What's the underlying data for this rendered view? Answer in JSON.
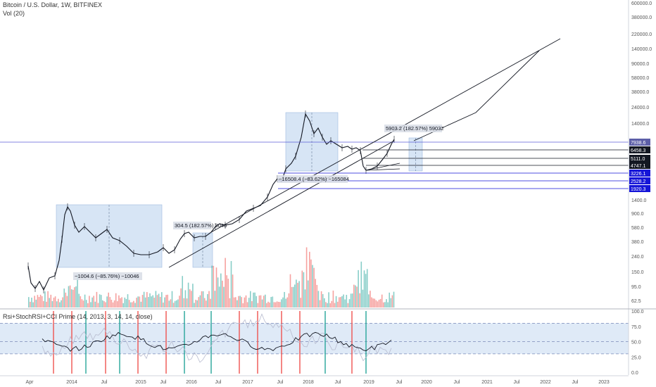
{
  "header": {
    "symbol_line": "Bitcoin / U.S. Dollar, 1W, BITFINEX",
    "volume_label": "Vol (20)",
    "indicator_label": "Rsi+StochRSI+CCI Prime (14, 2013, 3, 14, 14, close)"
  },
  "colors": {
    "up": "#26a69a",
    "down": "#ef5350",
    "box_fill": "#c9dcf2",
    "line": "#131722",
    "current_price_line": "#5b5bd6"
  },
  "chart_data": [
    {
      "type": "line",
      "title": "Bitcoin / U.S. Dollar, 1W, BITFINEX",
      "y_scale": "log",
      "y_ticks": [
        "600000.0",
        "380000.0",
        "220000.0",
        "140000.0",
        "90000.0",
        "58000.0",
        "38000.0",
        "24000.0",
        "14000.0",
        "6458.3",
        "5111.0",
        "4747.1",
        "2528.2",
        "1920.3",
        "1400.0",
        "900.0",
        "580.0",
        "380.0",
        "240.0",
        "150.0",
        "95.0",
        "62.5"
      ],
      "x_ticks": [
        "Apr",
        "2014",
        "Jul",
        "2015",
        "Jul",
        "2016",
        "Jul",
        "2017",
        "Jul",
        "2018",
        "Jul",
        "2019",
        "Jul",
        "2020",
        "Jul",
        "2021",
        "Jul",
        "2022",
        "Jul",
        "2023"
      ],
      "series": [
        {
          "x": [
            "2013-04",
            "2013-08",
            "2013-11",
            "2013-12",
            "2014-03",
            "2014-07",
            "2015-01",
            "2015-08",
            "2016-06",
            "2016-09",
            "2017-01",
            "2017-06",
            "2017-09",
            "2017-12",
            "2018-02",
            "2018-06",
            "2018-09",
            "2018-12",
            "2019-04",
            "2019-06"
          ],
          "y": [
            100,
            110,
            800,
            1000,
            500,
            600,
            180,
            230,
            650,
            600,
            1000,
            2500,
            4000,
            19000,
            7000,
            6500,
            6400,
            3300,
            5000,
            13000
          ]
        }
      ],
      "price_labels": [
        {
          "value": "7938.6",
          "style": "current"
        },
        {
          "value": "6458.3",
          "style": "dark"
        },
        {
          "value": "5111.0",
          "style": "dark"
        },
        {
          "value": "4747.1",
          "style": "dark"
        },
        {
          "value": "3226.1",
          "style": "blue"
        },
        {
          "value": "2528.2",
          "style": "blue"
        },
        {
          "value": "1920.3",
          "style": "blue"
        }
      ],
      "annotations": [
        "5903.2 (182.57%) 59032",
        "−16508.4 (−83.62%) −165084",
        "304.5 (182.57%) 3046",
        "−1004.6 (−85.76%) −10046"
      ]
    },
    {
      "type": "bar",
      "title": "Vol (20)"
    },
    {
      "type": "line",
      "title": "Rsi+StochRSI+CCI Prime (14, 2013, 3, 14, 14, close)",
      "y_ticks": [
        "100.0",
        "75.0",
        "50.0",
        "25.0",
        "0.0"
      ],
      "ylim": [
        0,
        100
      ],
      "band": [
        30,
        80
      ]
    }
  ]
}
